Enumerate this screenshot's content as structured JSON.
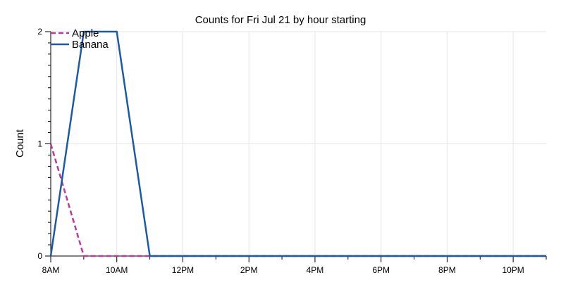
{
  "chart_data": {
    "type": "line",
    "title": "Counts for Fri Jul 21 by hour starting",
    "xlabel": "",
    "ylabel": "Count",
    "x": [
      8,
      9,
      10,
      11,
      12,
      13,
      14,
      15,
      16,
      17,
      18,
      19,
      20,
      21,
      22,
      23
    ],
    "xlim": [
      8,
      23
    ],
    "ylim": [
      0,
      2
    ],
    "x_ticks": [
      8,
      10,
      12,
      14,
      16,
      18,
      20,
      22
    ],
    "x_tick_labels": [
      "8AM",
      "10AM",
      "12PM",
      "2PM",
      "4PM",
      "6PM",
      "8PM",
      "10PM"
    ],
    "y_ticks": [
      0,
      1,
      2
    ],
    "y_tick_labels": [
      "0",
      "1",
      "2"
    ],
    "grid": true,
    "legend": "top-left",
    "series": [
      {
        "name": "Apple",
        "color": "#b93c99",
        "dash": "dashed",
        "values": [
          1,
          0,
          0,
          0,
          0,
          0,
          0,
          0,
          0,
          0,
          0,
          0,
          0,
          0,
          0,
          0
        ]
      },
      {
        "name": "Banana",
        "color": "#1c5aa6",
        "dash": "solid",
        "values": [
          0,
          2,
          2,
          0,
          0,
          0,
          0,
          0,
          0,
          0,
          0,
          0,
          0,
          0,
          0,
          0
        ]
      }
    ]
  }
}
